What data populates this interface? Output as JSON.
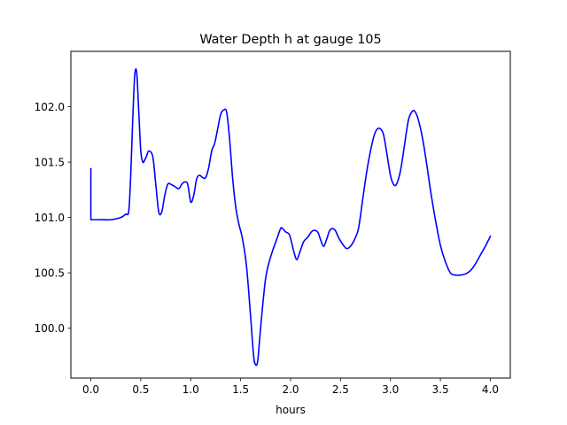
{
  "chart_data": {
    "type": "line",
    "title": "Water Depth h at gauge 105",
    "xlabel": "hours",
    "ylabel": "",
    "xlim": [
      -0.2,
      4.2
    ],
    "ylim": [
      99.55,
      102.5
    ],
    "xticks": [
      0.0,
      0.5,
      1.0,
      1.5,
      2.0,
      2.5,
      3.0,
      3.5,
      4.0
    ],
    "xtick_labels": [
      "0.0",
      "0.5",
      "1.0",
      "1.5",
      "2.0",
      "2.5",
      "3.0",
      "3.5",
      "4.0"
    ],
    "yticks": [
      100.0,
      100.5,
      101.0,
      101.5,
      102.0
    ],
    "ytick_labels": [
      "100.0",
      "100.5",
      "101.0",
      "101.5",
      "102.0"
    ],
    "grid": false,
    "legend": "none",
    "series": [
      {
        "color": "#0000ff",
        "x": [
          0.0,
          0.0,
          0.1,
          0.2,
          0.3,
          0.35,
          0.38,
          0.4,
          0.42,
          0.44,
          0.46,
          0.48,
          0.5,
          0.52,
          0.54,
          0.56,
          0.58,
          0.62,
          0.65,
          0.68,
          0.71,
          0.74,
          0.77,
          0.8,
          0.84,
          0.88,
          0.91,
          0.94,
          0.97,
          1.0,
          1.03,
          1.06,
          1.09,
          1.12,
          1.15,
          1.18,
          1.21,
          1.24,
          1.27,
          1.3,
          1.33,
          1.36,
          1.39,
          1.42,
          1.45,
          1.48,
          1.52,
          1.56,
          1.6,
          1.63,
          1.65,
          1.67,
          1.69,
          1.72,
          1.75,
          1.78,
          1.82,
          1.86,
          1.9,
          1.92,
          1.95,
          1.99,
          2.03,
          2.06,
          2.09,
          2.13,
          2.17,
          2.22,
          2.27,
          2.3,
          2.33,
          2.36,
          2.39,
          2.42,
          2.45,
          2.48,
          2.52,
          2.56,
          2.6,
          2.64,
          2.68,
          2.72,
          2.76,
          2.8,
          2.84,
          2.87,
          2.9,
          2.93,
          2.96,
          3.0,
          3.03,
          3.06,
          3.1,
          3.14,
          3.18,
          3.22,
          3.25,
          3.28,
          3.32,
          3.36,
          3.4,
          3.45,
          3.5,
          3.55,
          3.6,
          3.65,
          3.7,
          3.75,
          3.8,
          3.85,
          3.9,
          3.95,
          4.0
        ],
        "y": [
          101.44,
          100.98,
          100.98,
          100.98,
          101.0,
          101.03,
          101.06,
          101.4,
          101.9,
          102.29,
          102.3,
          101.95,
          101.6,
          101.5,
          101.52,
          101.56,
          101.6,
          101.55,
          101.3,
          101.05,
          101.05,
          101.2,
          101.3,
          101.3,
          101.28,
          101.26,
          101.3,
          101.32,
          101.3,
          101.14,
          101.2,
          101.35,
          101.38,
          101.36,
          101.36,
          101.45,
          101.6,
          101.67,
          101.8,
          101.93,
          101.97,
          101.95,
          101.7,
          101.35,
          101.1,
          100.95,
          100.8,
          100.55,
          100.1,
          99.75,
          99.67,
          99.7,
          99.9,
          100.2,
          100.45,
          100.58,
          100.7,
          100.8,
          100.9,
          100.9,
          100.87,
          100.84,
          100.7,
          100.62,
          100.68,
          100.78,
          100.82,
          100.88,
          100.87,
          100.8,
          100.74,
          100.8,
          100.88,
          100.9,
          100.88,
          100.82,
          100.76,
          100.72,
          100.74,
          100.8,
          100.9,
          101.15,
          101.4,
          101.6,
          101.75,
          101.8,
          101.8,
          101.75,
          101.6,
          101.38,
          101.3,
          101.3,
          101.42,
          101.65,
          101.88,
          101.96,
          101.95,
          101.88,
          101.72,
          101.5,
          101.25,
          100.98,
          100.75,
          100.6,
          100.5,
          100.48,
          100.48,
          100.49,
          100.52,
          100.58,
          100.66,
          100.74,
          100.83
        ]
      }
    ]
  }
}
